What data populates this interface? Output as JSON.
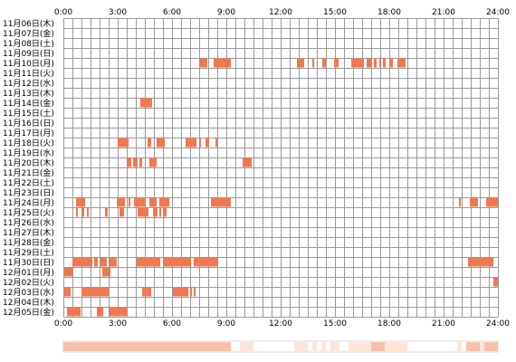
{
  "chart_data": {
    "type": "heatmap",
    "title": "",
    "x_axis": {
      "min": 0,
      "max": 24,
      "unit": "hour",
      "tick_labels": [
        "0:00",
        "3:00",
        "6:00",
        "9:00",
        "12:00",
        "15:00",
        "18:00",
        "21:00",
        "24:00"
      ]
    },
    "grid": true,
    "colors": {
      "activity": "#f07850",
      "grid": "#9a9a9a",
      "background": "#ffffff",
      "summary_light": "#fde4d8",
      "summary_mid": "#f9c0a8"
    },
    "rows": [
      {
        "label": "11月06日(木)",
        "intervals": []
      },
      {
        "label": "11月07日(金)",
        "intervals": []
      },
      {
        "label": "11月08日(土)",
        "intervals": []
      },
      {
        "label": "11月09日(日)",
        "intervals": []
      },
      {
        "label": "11月10日(月)",
        "intervals": [
          [
            7.5,
            7.95
          ],
          [
            8.3,
            9.25
          ],
          [
            12.9,
            13.3
          ],
          [
            13.75,
            13.85
          ],
          [
            14.3,
            14.5
          ],
          [
            14.95,
            15.2
          ],
          [
            15.9,
            16.6
          ],
          [
            16.75,
            17.05
          ],
          [
            17.15,
            17.3
          ],
          [
            17.45,
            17.55
          ],
          [
            17.65,
            17.8
          ],
          [
            18.0,
            18.2
          ],
          [
            18.45,
            18.9
          ]
        ]
      },
      {
        "label": "11月11日(火)",
        "intervals": []
      },
      {
        "label": "11月12日(水)",
        "intervals": []
      },
      {
        "label": "11月13日(木)",
        "intervals": []
      },
      {
        "label": "11月14日(金)",
        "intervals": [
          [
            4.25,
            4.9
          ]
        ]
      },
      {
        "label": "11月15日(土)",
        "intervals": []
      },
      {
        "label": "11月16日(日)",
        "intervals": []
      },
      {
        "label": "11月17日(月)",
        "intervals": []
      },
      {
        "label": "11月18日(火)",
        "intervals": [
          [
            3.0,
            3.6
          ],
          [
            4.65,
            4.85
          ],
          [
            5.15,
            5.6
          ],
          [
            6.75,
            7.35
          ],
          [
            7.5,
            7.6
          ],
          [
            7.85,
            8.05
          ],
          [
            8.4,
            8.5
          ]
        ]
      },
      {
        "label": "11月19日(水)",
        "intervals": []
      },
      {
        "label": "11月20日(木)",
        "intervals": [
          [
            3.5,
            3.75
          ],
          [
            3.85,
            4.1
          ],
          [
            4.2,
            4.35
          ],
          [
            4.75,
            5.15
          ],
          [
            9.9,
            10.4
          ]
        ]
      },
      {
        "label": "11月21日(金)",
        "intervals": []
      },
      {
        "label": "11月22日(土)",
        "intervals": []
      },
      {
        "label": "11月23日(日)",
        "intervals": []
      },
      {
        "label": "11月24日(月)",
        "intervals": [
          [
            0.7,
            1.2
          ],
          [
            2.95,
            3.4
          ],
          [
            3.6,
            3.7
          ],
          [
            3.9,
            4.5
          ],
          [
            4.75,
            5.15
          ],
          [
            5.3,
            5.85
          ],
          [
            8.15,
            9.25
          ],
          [
            21.85,
            21.95
          ],
          [
            22.45,
            22.9
          ],
          [
            23.35,
            24.0
          ]
        ]
      },
      {
        "label": "11月25日(火)",
        "intervals": [
          [
            0.7,
            0.8
          ],
          [
            1.05,
            1.15
          ],
          [
            1.3,
            1.4
          ],
          [
            2.3,
            2.45
          ],
          [
            3.1,
            3.35
          ],
          [
            4.1,
            4.7
          ],
          [
            4.95,
            5.2
          ],
          [
            5.3,
            5.4
          ],
          [
            5.55,
            5.7
          ]
        ]
      },
      {
        "label": "11月26日(水)",
        "intervals": []
      },
      {
        "label": "11月27日(木)",
        "intervals": []
      },
      {
        "label": "11月28日(金)",
        "intervals": []
      },
      {
        "label": "11月29日(土)",
        "intervals": []
      },
      {
        "label": "11月30日(日)",
        "intervals": [
          [
            0.5,
            1.6
          ],
          [
            1.7,
            1.9
          ],
          [
            2.05,
            2.4
          ],
          [
            2.55,
            2.95
          ],
          [
            4.05,
            5.35
          ],
          [
            5.5,
            7.05
          ],
          [
            7.2,
            8.55
          ],
          [
            22.35,
            23.75
          ]
        ]
      },
      {
        "label": "12月01日(月)",
        "intervals": [
          [
            0.05,
            0.5
          ],
          [
            2.15,
            2.6
          ]
        ]
      },
      {
        "label": "12月02日(火)",
        "intervals": [
          [
            23.75,
            24.0
          ]
        ]
      },
      {
        "label": "12月03日(水)",
        "intervals": [
          [
            0.0,
            0.4
          ],
          [
            1.0,
            2.5
          ],
          [
            4.35,
            4.85
          ],
          [
            6.05,
            6.9
          ],
          [
            7.0,
            7.1
          ],
          [
            7.2,
            7.3
          ]
        ]
      },
      {
        "label": "12月04日(木)",
        "intervals": []
      },
      {
        "label": "12月05日(金)",
        "intervals": [
          [
            0.2,
            0.95
          ],
          [
            1.85,
            2.2
          ],
          [
            2.55,
            3.5
          ]
        ]
      }
    ]
  }
}
